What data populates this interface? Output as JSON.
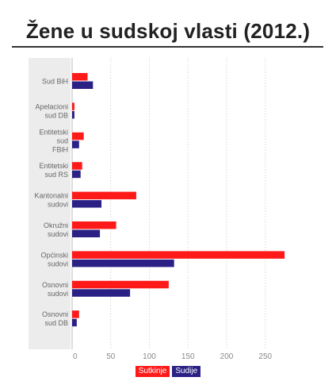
{
  "title": "Žene u sudskoj vlasti (2012.)",
  "colors": {
    "sutkinje": "#ff1a1a",
    "sudije": "#2b2185",
    "grid": "#d8d8d8",
    "label_panel": "#ececec",
    "axis_text": "#888888"
  },
  "chart_data": {
    "type": "bar",
    "orientation": "horizontal",
    "categories": [
      [
        "Sud BiH"
      ],
      [
        "Apelacioni",
        "sud DB"
      ],
      [
        "Entitetski",
        "sud",
        "FBiH"
      ],
      [
        "Entitetski",
        "sud RS"
      ],
      [
        "Kantonalni",
        "sudovi"
      ],
      [
        "Okružni",
        "sudovi"
      ],
      [
        "Općinski",
        "sudovi"
      ],
      [
        "Osnovni",
        "sudovi"
      ],
      [
        "Osnovni",
        "sud DB"
      ]
    ],
    "series": [
      {
        "name": "Sutkinje",
        "color": "#ff1a1a",
        "values": [
          20,
          3,
          15,
          13,
          83,
          57,
          275,
          125,
          9
        ]
      },
      {
        "name": "Sudije",
        "color": "#2b2185",
        "values": [
          27,
          3,
          9,
          11,
          38,
          36,
          132,
          75,
          6
        ]
      }
    ],
    "xlim": [
      0,
      275
    ],
    "xticks": [
      0,
      50,
      100,
      150,
      200,
      250
    ],
    "grid": true,
    "legend_position": "bottom"
  },
  "legend": [
    {
      "label": "Sutkinje",
      "color": "#ff1a1a"
    },
    {
      "label": "Sudije",
      "color": "#2b2185"
    }
  ]
}
